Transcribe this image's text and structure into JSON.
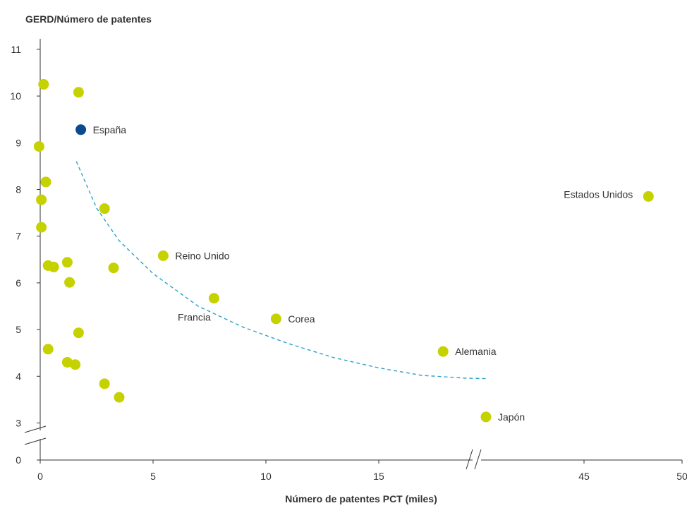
{
  "chart_data": {
    "type": "scatter",
    "title": "",
    "ylabel": "GERD/Número de patentes",
    "xlabel": "Número de patentes PCT (miles)",
    "x_ticks": [
      {
        "value": 0,
        "label": "0"
      },
      {
        "value": 5,
        "label": "5"
      },
      {
        "value": 10,
        "label": "10"
      },
      {
        "value": 15,
        "label": "15"
      },
      {
        "value": 45,
        "label": "45"
      },
      {
        "value": 50,
        "label": "50"
      }
    ],
    "y_ticks": [
      {
        "value": 0,
        "label": "0"
      },
      {
        "value": 3,
        "label": "3"
      },
      {
        "value": 4,
        "label": "4"
      },
      {
        "value": 5,
        "label": "5"
      },
      {
        "value": 6,
        "label": "6"
      },
      {
        "value": 7,
        "label": "7"
      },
      {
        "value": 8,
        "label": "8"
      },
      {
        "value": 9,
        "label": "9"
      },
      {
        "value": 10,
        "label": "10"
      },
      {
        "value": 11,
        "label": "11"
      }
    ],
    "xlim": [
      0,
      50
    ],
    "ylim": [
      0,
      11
    ],
    "x_axis_break": {
      "from": 20,
      "to": 40
    },
    "y_axis_break": {
      "from": 0,
      "to": 3
    },
    "grid": false,
    "colors": {
      "points": "#c5d200",
      "highlight": "#0b4a8f",
      "trend": "#2aa3c6",
      "axis": "#333333"
    },
    "points": [
      {
        "label": "",
        "x": 0.15,
        "y": 10.25
      },
      {
        "label": "",
        "x": 1.7,
        "y": 10.08
      },
      {
        "label": "España",
        "x": 1.8,
        "y": 9.28,
        "highlight": true
      },
      {
        "label": "",
        "x": -0.05,
        "y": 8.92
      },
      {
        "label": "",
        "x": 0.25,
        "y": 8.16
      },
      {
        "label": "",
        "x": 0.05,
        "y": 7.78
      },
      {
        "label": "",
        "x": 2.85,
        "y": 7.59
      },
      {
        "label": "",
        "x": 0.05,
        "y": 7.19
      },
      {
        "label": "Reino Unido",
        "x": 5.45,
        "y": 6.58
      },
      {
        "label": "",
        "x": 1.2,
        "y": 6.44
      },
      {
        "label": "",
        "x": 0.35,
        "y": 6.37
      },
      {
        "label": "",
        "x": 0.6,
        "y": 6.34
      },
      {
        "label": "",
        "x": 3.25,
        "y": 6.32
      },
      {
        "label": "",
        "x": 1.3,
        "y": 6.01
      },
      {
        "label": "Francia",
        "x": 7.7,
        "y": 5.67
      },
      {
        "label": "Corea",
        "x": 10.45,
        "y": 5.23
      },
      {
        "label": "",
        "x": 1.7,
        "y": 4.93
      },
      {
        "label": "",
        "x": 0.35,
        "y": 4.58
      },
      {
        "label": "Alemania",
        "x": 18.0,
        "y": 4.53
      },
      {
        "label": "",
        "x": 1.2,
        "y": 4.3
      },
      {
        "label": "",
        "x": 1.55,
        "y": 4.25
      },
      {
        "label": "",
        "x": 2.85,
        "y": 3.84
      },
      {
        "label": "",
        "x": 3.5,
        "y": 3.55
      },
      {
        "label": "Japón",
        "x": 20.0,
        "y": 3.13
      },
      {
        "label": "Estados Unidos",
        "x": 48.5,
        "y": 7.85
      }
    ],
    "trend_line": {
      "style": "dashed",
      "x": [
        1.6,
        2.5,
        3.5,
        5,
        7,
        9,
        11,
        13,
        15,
        17,
        19,
        20.1
      ],
      "y": [
        8.6,
        7.6,
        6.9,
        6.2,
        5.5,
        5.05,
        4.7,
        4.4,
        4.18,
        4.02,
        3.96,
        3.95
      ]
    }
  }
}
